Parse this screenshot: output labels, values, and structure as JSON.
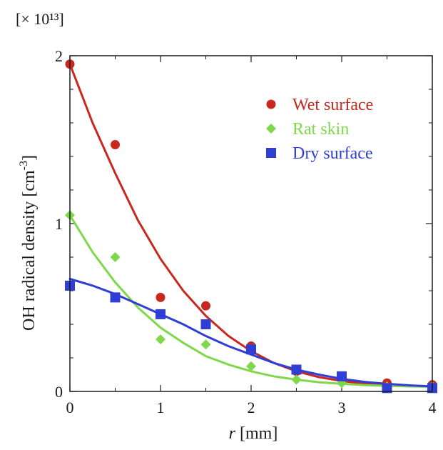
{
  "chart_data": {
    "type": "scatter",
    "multiplier_label": "[× 10¹³]",
    "xlabel_italic": "r",
    "xlabel_unit": " [mm]",
    "ylabel_main": "OH radical density [cm",
    "ylabel_sup": "-3",
    "ylabel_close": "]",
    "xlim": [
      0,
      4
    ],
    "ylim": [
      0,
      2
    ],
    "x_ticks": [
      0,
      1,
      2,
      3,
      4
    ],
    "x_tick_labels": [
      "0",
      "1",
      "2",
      "3",
      "4"
    ],
    "y_ticks": [
      0,
      1,
      2
    ],
    "y_tick_labels": [
      "0",
      "1",
      "2"
    ],
    "legend_position": "top-right",
    "grid": false,
    "series": [
      {
        "name": "Wet surface",
        "marker": "circle",
        "color": "#c8281e",
        "x": [
          0,
          0.5,
          1,
          1.5,
          2,
          2.5,
          3,
          3.5,
          4
        ],
        "y": [
          1.95,
          1.47,
          0.56,
          0.51,
          0.27,
          0.12,
          0.09,
          0.05,
          0.04
        ],
        "fit_x": [
          0,
          0.25,
          0.5,
          0.75,
          1,
          1.25,
          1.5,
          1.75,
          2,
          2.25,
          2.5,
          2.75,
          3,
          3.25,
          3.5,
          3.75,
          4
        ],
        "fit_y": [
          1.95,
          1.6,
          1.3,
          1.02,
          0.79,
          0.6,
          0.45,
          0.33,
          0.24,
          0.17,
          0.12,
          0.085,
          0.062,
          0.047,
          0.037,
          0.031,
          0.028
        ]
      },
      {
        "name": "Rat skin",
        "marker": "diamond",
        "color": "#7ed84a",
        "x": [
          0,
          0.5,
          1,
          1.5,
          2,
          2.5,
          3,
          3.5,
          4
        ],
        "y": [
          1.05,
          0.8,
          0.31,
          0.28,
          0.15,
          0.07,
          0.05,
          0.03,
          0.03
        ],
        "fit_x": [
          0,
          0.25,
          0.5,
          0.75,
          1,
          1.25,
          1.5,
          1.75,
          2,
          2.25,
          2.5,
          2.75,
          3,
          3.25,
          3.5,
          3.75,
          4
        ],
        "fit_y": [
          1.05,
          0.83,
          0.65,
          0.5,
          0.38,
          0.29,
          0.21,
          0.16,
          0.12,
          0.09,
          0.07,
          0.055,
          0.045,
          0.038,
          0.033,
          0.03,
          0.028
        ]
      },
      {
        "name": "Dry surface",
        "marker": "square",
        "color": "#2f3fd6",
        "x": [
          0,
          0.5,
          1,
          1.5,
          2,
          2.5,
          3,
          3.5,
          4
        ],
        "y": [
          0.63,
          0.56,
          0.46,
          0.4,
          0.25,
          0.13,
          0.09,
          0.02,
          0.02
        ],
        "fit_x": [
          0,
          0.25,
          0.5,
          0.75,
          1,
          1.25,
          1.5,
          1.75,
          2,
          2.25,
          2.5,
          2.75,
          3,
          3.25,
          3.5,
          3.75,
          4
        ],
        "fit_y": [
          0.67,
          0.63,
          0.58,
          0.52,
          0.46,
          0.4,
          0.33,
          0.27,
          0.22,
          0.17,
          0.13,
          0.1,
          0.075,
          0.057,
          0.045,
          0.036,
          0.03
        ]
      }
    ]
  }
}
